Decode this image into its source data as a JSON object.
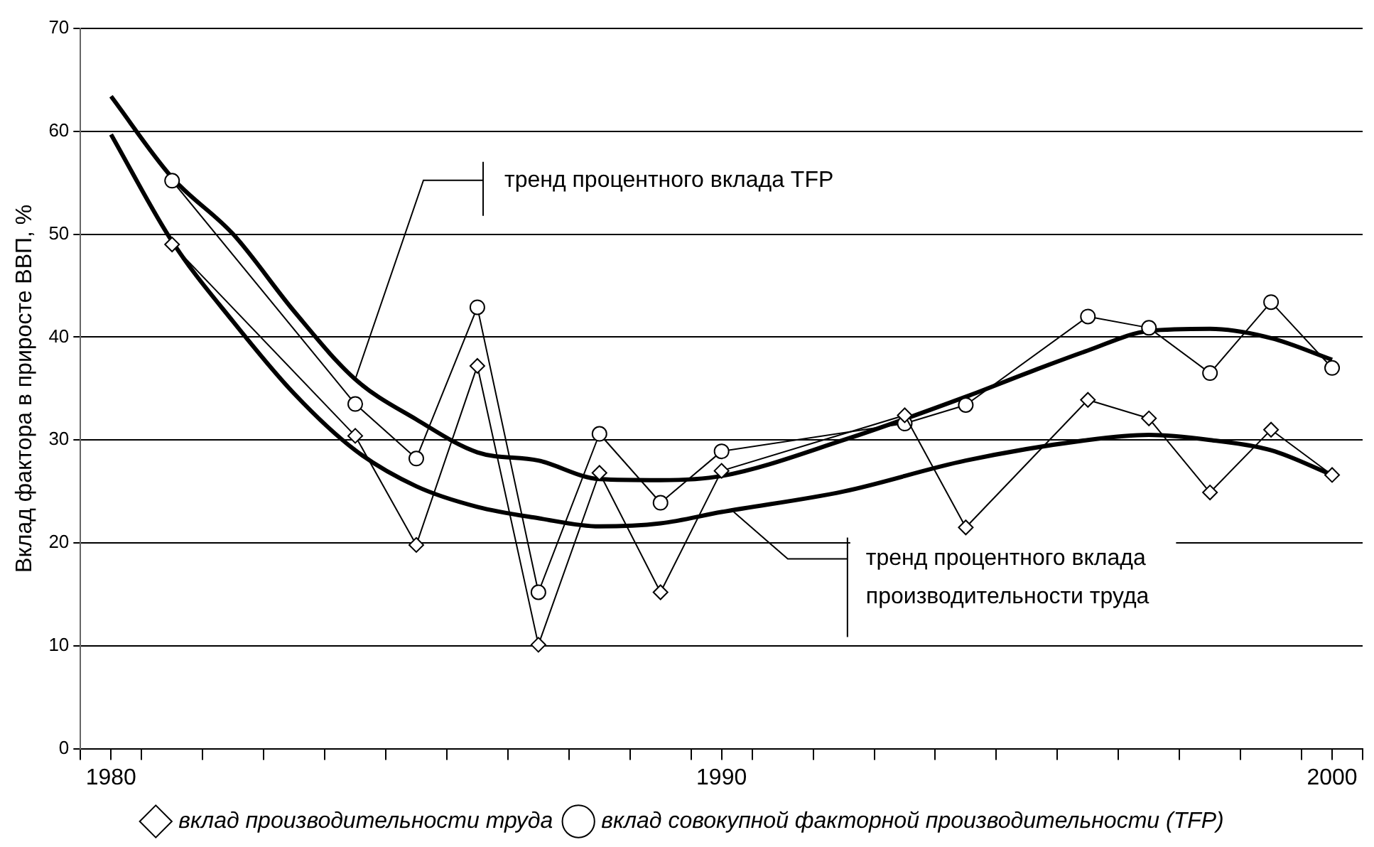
{
  "chart_data": {
    "type": "line",
    "ylabel": "Вклад фактора в приросте ВВП, %",
    "xlim": [
      1979.5,
      2000.5
    ],
    "xticks": [
      {
        "value": 1979.5,
        "label": null
      },
      {
        "value": 1980,
        "label": "1980"
      },
      {
        "value": 1980.5,
        "label": null
      },
      {
        "value": 1981.5,
        "label": null
      },
      {
        "value": 1982.5,
        "label": null
      },
      {
        "value": 1983.5,
        "label": null
      },
      {
        "value": 1984.5,
        "label": null
      },
      {
        "value": 1985.5,
        "label": null
      },
      {
        "value": 1986.5,
        "label": null
      },
      {
        "value": 1987.5,
        "label": null
      },
      {
        "value": 1988.5,
        "label": null
      },
      {
        "value": 1989.5,
        "label": null
      },
      {
        "value": 1990,
        "label": "1990"
      },
      {
        "value": 1990.5,
        "label": null
      },
      {
        "value": 1991.5,
        "label": null
      },
      {
        "value": 1992.5,
        "label": null
      },
      {
        "value": 1993.5,
        "label": null
      },
      {
        "value": 1994.5,
        "label": null
      },
      {
        "value": 1995.5,
        "label": null
      },
      {
        "value": 1996.5,
        "label": null
      },
      {
        "value": 1997.5,
        "label": null
      },
      {
        "value": 1998.5,
        "label": null
      },
      {
        "value": 1999.5,
        "label": null
      },
      {
        "value": 2000,
        "label": "2000"
      },
      {
        "value": 2000.5,
        "label": null
      }
    ],
    "ylim": [
      0,
      70
    ],
    "yticks": [
      0,
      10,
      20,
      30,
      40,
      50,
      60,
      70
    ],
    "grid": "y",
    "legend": "bottom",
    "line_style": "solid",
    "series": [
      {
        "name": "вклад производительности труда",
        "color": "#000000",
        "marker": "diamond",
        "x": [
          1981,
          1984,
          1985,
          1986,
          1987,
          1988,
          1989,
          1990,
          1993,
          1994,
          1996,
          1997,
          1998,
          1999,
          2000
        ],
        "values": [
          49.0,
          30.4,
          19.8,
          37.2,
          10.1,
          26.8,
          15.2,
          27.0,
          32.4,
          21.5,
          33.9,
          32.1,
          24.9,
          31.0,
          26.6
        ]
      },
      {
        "name": "вклад совокупной факторной производительности (TFP)",
        "color": "#000000",
        "marker": "circle",
        "x": [
          1981,
          1984,
          1985,
          1986,
          1987,
          1988,
          1989,
          1990,
          1993,
          1994,
          1996,
          1997,
          1998,
          1999,
          2000
        ],
        "values": [
          55.2,
          33.5,
          28.2,
          42.9,
          15.2,
          30.6,
          23.9,
          28.9,
          31.6,
          33.4,
          42.0,
          40.9,
          36.5,
          43.4,
          37.0
        ]
      },
      {
        "type": "line",
        "color": "#000000",
        "marker": "none",
        "x": [
          1980,
          1981,
          1982,
          1983,
          1984,
          1985,
          1986,
          1987,
          1988,
          1989,
          1990,
          1992,
          1994,
          1995,
          1996,
          1997,
          1998,
          1999,
          2000
        ],
        "values": [
          63.4,
          55.5,
          50,
          42.5,
          35.9,
          32,
          28.8,
          28,
          26.2,
          26.1,
          26.5,
          30,
          34.2,
          36.5,
          38.7,
          40.6,
          40.8,
          39.9,
          37.8
        ]
      },
      {
        "type": "line",
        "color": "#000000",
        "marker": "none",
        "x": [
          1980,
          1981,
          1982,
          1983,
          1984,
          1985,
          1986,
          1987,
          1988,
          1989,
          1990,
          1992,
          1994,
          1996,
          1997,
          1998,
          1999,
          2000
        ],
        "values": [
          59.7,
          49.3,
          41.5,
          34.5,
          29,
          25.5,
          23.5,
          22.4,
          21.6,
          21.9,
          23,
          25,
          28,
          30,
          30.5,
          30,
          29,
          26.6
        ]
      }
    ],
    "annotations": [
      {
        "text": "тренд процентного вклада TFP",
        "x": 1984,
        "y": 35.9
      },
      {
        "text": "тренд процентного вклада производительности труда",
        "x": 1990.2,
        "y": 23
      }
    ]
  }
}
